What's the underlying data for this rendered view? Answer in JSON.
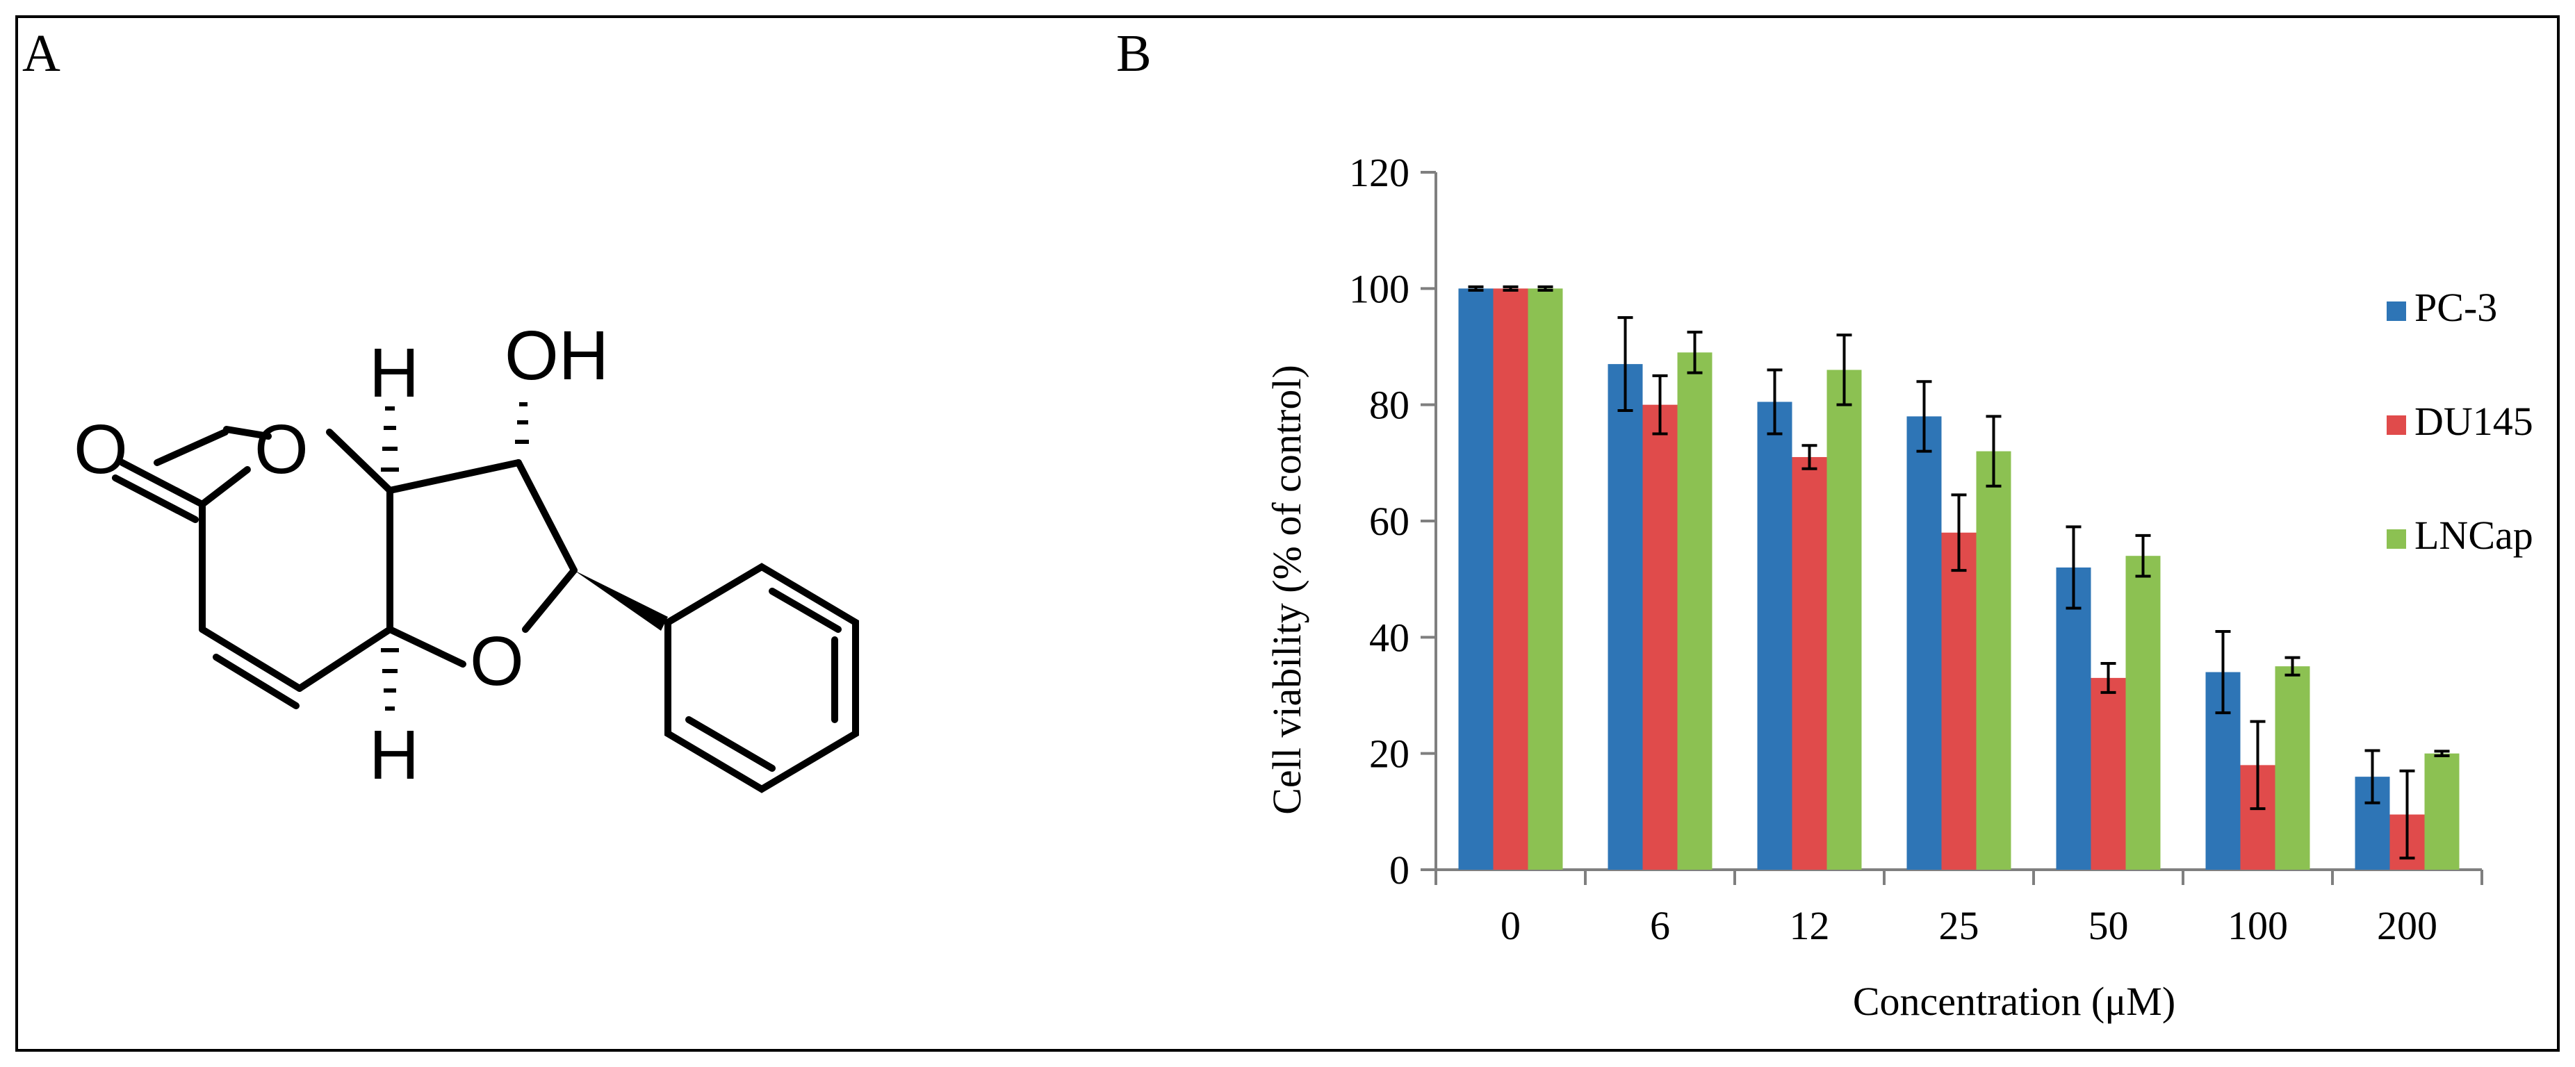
{
  "panels": {
    "a_label": "A",
    "b_label": "B"
  },
  "molecule": {
    "atoms": {
      "oh": "OH",
      "o_carbonyl": "O",
      "o_ring_lactone": "O",
      "o_ring_furan": "O",
      "h_top": "H",
      "h_bottom": "H"
    }
  },
  "chart_data": {
    "type": "bar",
    "categories": [
      "0",
      "6",
      "12",
      "25",
      "50",
      "100",
      "200"
    ],
    "series": [
      {
        "name": "PC-3",
        "color": "#2E75B6",
        "values": [
          100,
          87,
          80.5,
          78,
          52,
          34,
          16
        ],
        "errors": [
          0.3,
          8,
          5.5,
          6,
          7,
          7,
          4.5
        ]
      },
      {
        "name": "DU145",
        "color": "#E04B4B",
        "values": [
          100,
          80,
          71,
          58,
          33,
          18,
          9.5
        ],
        "errors": [
          0.3,
          5,
          2,
          6.5,
          2.5,
          7.5,
          7.5
        ]
      },
      {
        "name": "LNCap",
        "color": "#8CC152",
        "values": [
          100,
          89,
          86,
          72,
          54,
          35,
          20
        ],
        "errors": [
          0.3,
          3.5,
          6,
          6,
          3.5,
          1.5,
          0.4
        ]
      }
    ],
    "ylim": [
      0,
      120
    ],
    "yticks": [
      "0",
      "20",
      "40",
      "60",
      "80",
      "100",
      "120"
    ],
    "xlabel": "Concentration  (μM)",
    "ylabel": "Cell  viability  (% of  control)",
    "legend_position": "right",
    "grid": false
  }
}
